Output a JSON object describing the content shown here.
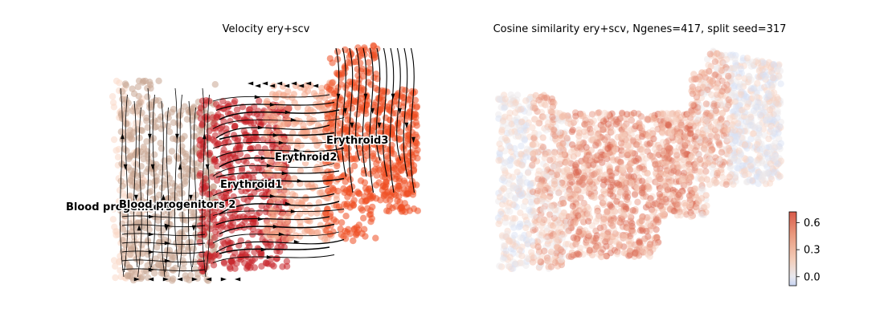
{
  "chart_data": [
    {
      "type": "scatter",
      "subtype": "velocity-streamplot-embedding",
      "title": "Velocity ery+scv",
      "xlabel": "",
      "ylabel": "",
      "axes_visible": false,
      "grid": false,
      "stream_color": "#000000",
      "clusters": [
        {
          "name": "Blood progenitors 1",
          "label": "Blood progenitors 1",
          "color": "#f9d9c9"
        },
        {
          "name": "Blood progenitors 2",
          "label": "Blood progenitors 2",
          "color": "#c9a591"
        },
        {
          "name": "Erythroid1",
          "label": "Erythroid1",
          "color": "#c72228"
        },
        {
          "name": "Erythroid2",
          "label": "Erythroid2",
          "color": "#f4a486"
        },
        {
          "name": "Erythroid3",
          "label": "Erythroid3",
          "color": "#ef4e22"
        }
      ]
    },
    {
      "type": "scatter",
      "subtype": "embedding-colored-by-value",
      "title": "Cosine similarity ery+scv, Ngenes=417, split seed=317",
      "xlabel": "",
      "ylabel": "",
      "axes_visible": false,
      "grid": false,
      "colormap": "coolwarm",
      "colorbar": {
        "ticks": [
          0.6,
          0.3,
          0.0
        ],
        "tick_labels": [
          "0.6",
          "0.3",
          "0.0"
        ],
        "range": [
          -0.1,
          0.72
        ],
        "position": "right"
      }
    }
  ]
}
